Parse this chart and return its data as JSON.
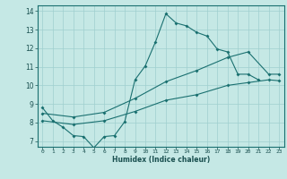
{
  "xlabel": "Humidex (Indice chaleur)",
  "xlim": [
    -0.5,
    23.5
  ],
  "ylim": [
    6.7,
    14.3
  ],
  "xticks": [
    0,
    1,
    2,
    3,
    4,
    5,
    6,
    7,
    8,
    9,
    10,
    11,
    12,
    13,
    14,
    15,
    16,
    17,
    18,
    19,
    20,
    21,
    22,
    23
  ],
  "yticks": [
    7,
    8,
    9,
    10,
    11,
    12,
    13,
    14
  ],
  "bg_color": "#c5e8e5",
  "line_color": "#1a7070",
  "grid_color": "#9fcfcf",
  "line1_x": [
    0,
    1,
    2,
    3,
    4,
    5,
    6,
    7,
    8,
    9,
    10,
    11,
    12,
    13,
    14,
    15,
    16,
    17,
    18,
    19,
    20,
    21,
    22
  ],
  "line1_y": [
    8.8,
    8.1,
    7.75,
    7.3,
    7.25,
    6.65,
    7.25,
    7.3,
    8.05,
    10.3,
    11.05,
    12.35,
    13.85,
    13.35,
    13.2,
    12.85,
    12.65,
    11.95,
    11.8,
    10.6,
    10.6,
    10.3,
    null
  ],
  "line2_x": [
    0,
    3,
    6,
    9,
    12,
    15,
    18,
    20,
    22,
    23
  ],
  "line2_y": [
    8.5,
    8.3,
    8.55,
    9.3,
    10.2,
    10.8,
    11.5,
    11.8,
    10.6,
    10.6
  ],
  "line3_x": [
    0,
    3,
    6,
    9,
    12,
    15,
    18,
    20,
    22,
    23
  ],
  "line3_y": [
    8.1,
    7.9,
    8.1,
    8.6,
    9.2,
    9.5,
    10.0,
    10.15,
    10.3,
    10.25
  ]
}
